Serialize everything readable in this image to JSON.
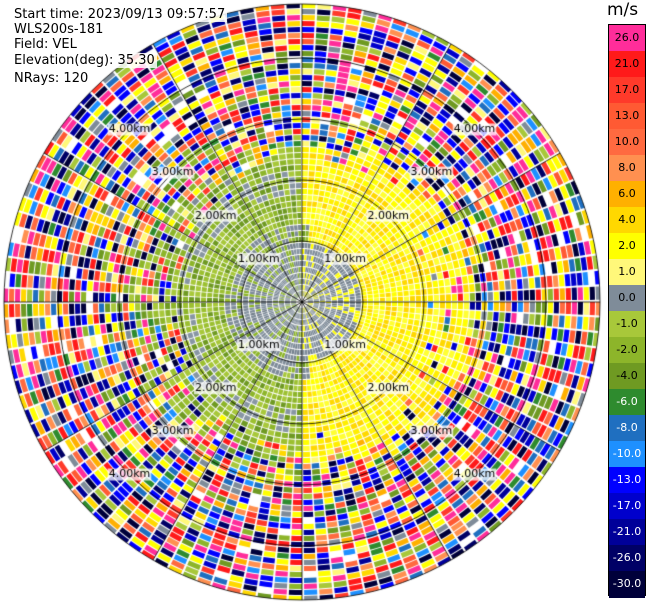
{
  "plot": {
    "start_time": "Start time: 2023/09/13 09:57:57",
    "station": "WLS200s-181",
    "field": "Field: VEL",
    "elevation": "Elevation(deg): 35.30",
    "nrays": "NRays: 120"
  },
  "range_ring_labels": [
    "1.00km",
    "2.00km",
    "3.00km",
    "4.00km"
  ],
  "colorbar": {
    "unit": "m/s",
    "ticks": [
      "26.0",
      "21.0",
      "17.0",
      "13.0",
      "10.0",
      "8.0",
      "6.0",
      "4.0",
      "2.0",
      "1.0",
      "0.0",
      "-1.0",
      "-2.0",
      "-4.0",
      "-6.0",
      "-8.0",
      "-10.0",
      "-13.0",
      "-17.0",
      "-21.0",
      "-26.0",
      "-30.0"
    ],
    "colors": [
      "#ff2d9a",
      "#ff1a1a",
      "#ff3a2a",
      "#ff5a33",
      "#ff6a40",
      "#ff9050",
      "#ffb000",
      "#ffd800",
      "#ffff00",
      "#fff87a",
      "#7f8c99",
      "#a8c83a",
      "#8db52a",
      "#6f9a22",
      "#2e8b2e",
      "#1f6fc0",
      "#1e90ff",
      "#0000ff",
      "#0000cc",
      "#000099",
      "#000066",
      "#00003a"
    ]
  },
  "chart_data": {
    "type": "heatmap",
    "title": "",
    "field": "VEL",
    "unit": "m/s",
    "projection": "polar (PPI)",
    "nrays": 120,
    "range_rings_km": [
      1.0,
      2.0,
      3.0,
      4.0
    ],
    "value_range": [
      -30,
      26
    ],
    "pattern": {
      "inner_0_1km": "near 0 m/s (gray) with small +/- patches",
      "east_half_0_2.4km": "positive ~2 m/s (yellow)",
      "west_half_0_2.4km": "negative ~-2 m/s (olive green)",
      "beyond_3km": "noisy random velocities spanning full range"
    }
  }
}
